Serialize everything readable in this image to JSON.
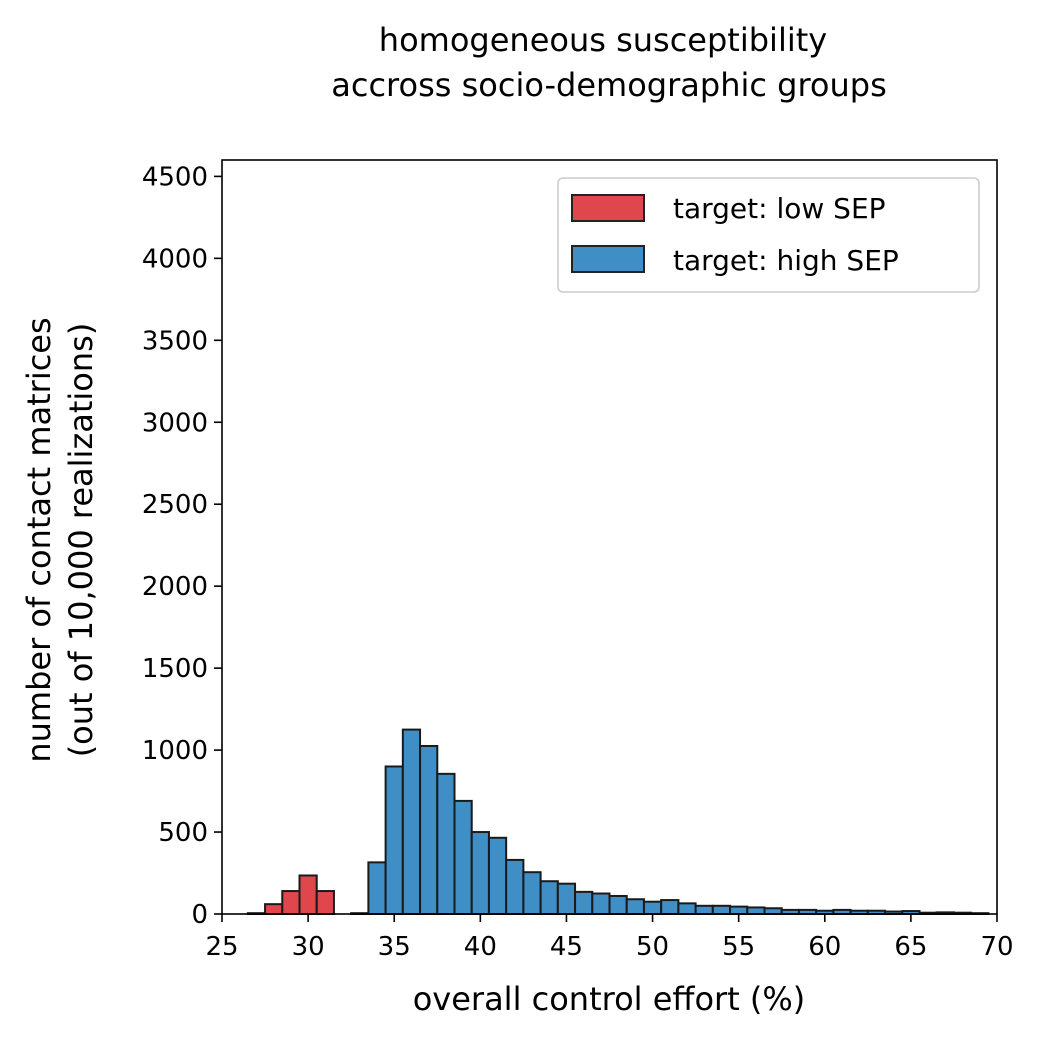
{
  "chart_data": {
    "type": "bar",
    "title_lines": [
      "homogeneous susceptibility",
      "accross socio-demographic groups"
    ],
    "xlabel": "overall control effort (%)",
    "ylabel_lines": [
      "number of contact matrices",
      "(out of 10,000 realizations)"
    ],
    "xlim": [
      25,
      70
    ],
    "ylim": [
      0,
      4600
    ],
    "xticks": [
      25,
      30,
      35,
      40,
      45,
      50,
      55,
      60,
      65,
      70
    ],
    "yticks": [
      0,
      500,
      1000,
      1500,
      2000,
      2500,
      3000,
      3500,
      4000,
      4500
    ],
    "grid": false,
    "legend_position": "top-right",
    "bin_width": 1,
    "series": [
      {
        "name": "target: low SEP",
        "color": "#e0474c",
        "bins": [
          {
            "x0": 26.5,
            "value": 5
          },
          {
            "x0": 27.5,
            "value": 60
          },
          {
            "x0": 28.5,
            "value": 140
          },
          {
            "x0": 29.5,
            "value": 235
          },
          {
            "x0": 30.5,
            "value": 140
          },
          {
            "x0": 32.5,
            "value": 5
          }
        ]
      },
      {
        "name": "target: high SEP",
        "color": "#3f8fc6",
        "bins": [
          {
            "x0": 33.5,
            "value": 315
          },
          {
            "x0": 34.5,
            "value": 900
          },
          {
            "x0": 35.5,
            "value": 1125
          },
          {
            "x0": 36.5,
            "value": 1025
          },
          {
            "x0": 37.5,
            "value": 855
          },
          {
            "x0": 38.5,
            "value": 690
          },
          {
            "x0": 39.5,
            "value": 500
          },
          {
            "x0": 40.5,
            "value": 465
          },
          {
            "x0": 41.5,
            "value": 330
          },
          {
            "x0": 42.5,
            "value": 255
          },
          {
            "x0": 43.5,
            "value": 200
          },
          {
            "x0": 44.5,
            "value": 185
          },
          {
            "x0": 45.5,
            "value": 135
          },
          {
            "x0": 46.5,
            "value": 125
          },
          {
            "x0": 47.5,
            "value": 110
          },
          {
            "x0": 48.5,
            "value": 90
          },
          {
            "x0": 49.5,
            "value": 75
          },
          {
            "x0": 50.5,
            "value": 85
          },
          {
            "x0": 51.5,
            "value": 65
          },
          {
            "x0": 52.5,
            "value": 50
          },
          {
            "x0": 53.5,
            "value": 50
          },
          {
            "x0": 54.5,
            "value": 45
          },
          {
            "x0": 55.5,
            "value": 40
          },
          {
            "x0": 56.5,
            "value": 35
          },
          {
            "x0": 57.5,
            "value": 25
          },
          {
            "x0": 58.5,
            "value": 25
          },
          {
            "x0": 59.5,
            "value": 20
          },
          {
            "x0": 60.5,
            "value": 25
          },
          {
            "x0": 61.5,
            "value": 20
          },
          {
            "x0": 62.5,
            "value": 20
          },
          {
            "x0": 63.5,
            "value": 15
          },
          {
            "x0": 64.5,
            "value": 18
          },
          {
            "x0": 65.5,
            "value": 8
          },
          {
            "x0": 66.5,
            "value": 10
          },
          {
            "x0": 67.5,
            "value": 8
          },
          {
            "x0": 68.5,
            "value": 5
          }
        ]
      }
    ]
  }
}
